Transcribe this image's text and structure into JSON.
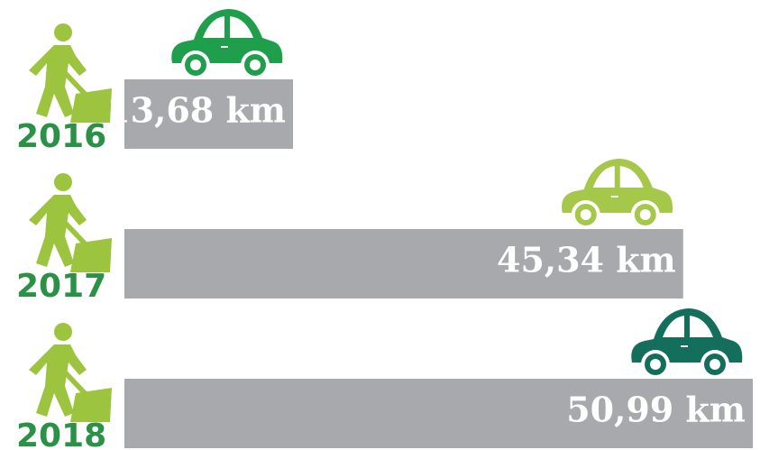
{
  "chart_data": {
    "type": "bar",
    "orientation": "horizontal",
    "categories": [
      "2016",
      "2017",
      "2018"
    ],
    "values": [
      13.68,
      45.34,
      50.99
    ],
    "value_labels": [
      "13,68 km",
      "45,34 km",
      "50,99 km"
    ],
    "bar_color": "#a7a9ac",
    "colors": [
      "#1f9e4b",
      "#a5c84b",
      "#136e5c"
    ]
  }
}
